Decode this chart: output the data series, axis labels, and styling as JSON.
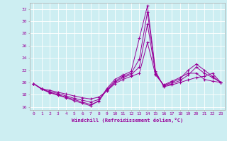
{
  "xlabel": "Windchill (Refroidissement éolien,°C)",
  "bg_color": "#cdeef2",
  "grid_color": "#ffffff",
  "line_color": "#990099",
  "xlim": [
    -0.5,
    23.5
  ],
  "ylim": [
    15.5,
    33.0
  ],
  "yticks": [
    16,
    18,
    20,
    22,
    24,
    26,
    28,
    30,
    32
  ],
  "xticks": [
    0,
    1,
    2,
    3,
    4,
    5,
    6,
    7,
    8,
    9,
    10,
    11,
    12,
    13,
    14,
    15,
    16,
    17,
    18,
    19,
    20,
    21,
    22,
    23
  ],
  "series": [
    {
      "x": [
        0,
        1,
        2,
        3,
        4,
        5,
        6,
        7,
        8,
        9,
        10,
        11,
        12,
        13,
        14,
        15,
        16,
        17,
        18,
        19,
        20,
        21,
        22,
        23
      ],
      "y": [
        19.8,
        18.9,
        18.3,
        17.9,
        17.5,
        17.0,
        16.6,
        16.2,
        17.0,
        19.0,
        20.5,
        21.2,
        21.8,
        27.2,
        32.5,
        21.8,
        19.3,
        19.6,
        20.0,
        20.4,
        20.8,
        21.0,
        21.5,
        20.0
      ]
    },
    {
      "x": [
        0,
        1,
        2,
        3,
        4,
        5,
        6,
        7,
        8,
        9,
        10,
        11,
        12,
        13,
        14,
        15,
        16,
        17,
        18,
        19,
        20,
        21,
        22,
        23
      ],
      "y": [
        19.8,
        18.9,
        18.4,
        18.0,
        17.6,
        17.2,
        16.8,
        16.4,
        16.9,
        18.8,
        20.2,
        21.0,
        21.5,
        23.8,
        31.5,
        21.6,
        19.4,
        19.8,
        20.3,
        21.2,
        22.5,
        21.5,
        20.8,
        20.0
      ]
    },
    {
      "x": [
        0,
        1,
        2,
        3,
        4,
        5,
        6,
        7,
        8,
        9,
        10,
        11,
        12,
        13,
        14,
        15,
        16,
        17,
        18,
        19,
        20,
        21,
        22,
        23
      ],
      "y": [
        19.8,
        18.9,
        18.5,
        18.2,
        17.8,
        17.4,
        17.1,
        16.8,
        17.2,
        18.7,
        20.0,
        20.8,
        21.3,
        22.5,
        29.5,
        21.4,
        19.5,
        20.0,
        20.6,
        22.0,
        23.0,
        22.0,
        21.0,
        20.0
      ]
    },
    {
      "x": [
        0,
        1,
        2,
        3,
        4,
        5,
        6,
        7,
        8,
        9,
        10,
        11,
        12,
        13,
        14,
        15,
        16,
        17,
        18,
        19,
        20,
        21,
        22,
        23
      ],
      "y": [
        19.8,
        19.0,
        18.7,
        18.4,
        18.1,
        17.8,
        17.5,
        17.3,
        17.6,
        18.6,
        19.8,
        20.5,
        21.0,
        21.5,
        26.5,
        21.2,
        19.6,
        20.2,
        20.8,
        21.5,
        21.5,
        20.5,
        20.2,
        20.0
      ]
    }
  ]
}
